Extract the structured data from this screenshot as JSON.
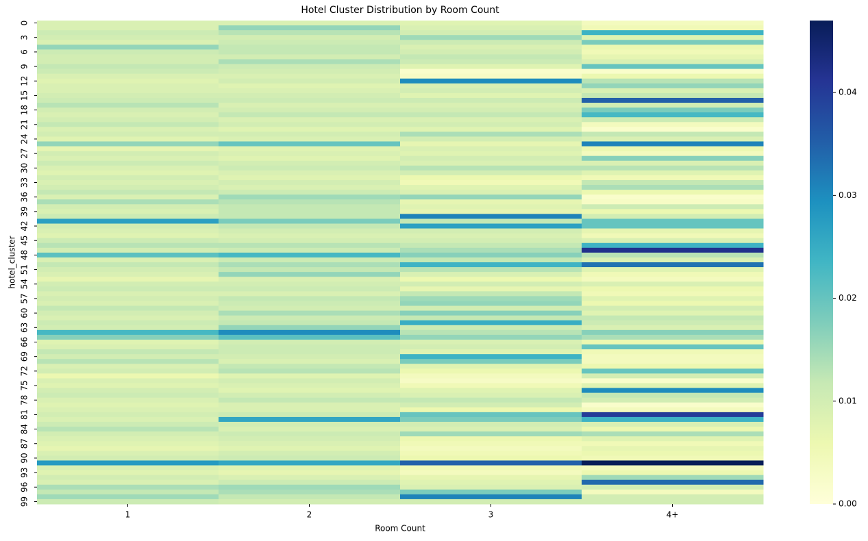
{
  "chart_data": {
    "type": "heatmap",
    "title": "Hotel Cluster Distribution by Room Count",
    "x_label": "Room Count",
    "y_label": "hotel_cluster",
    "x_categories": [
      "1",
      "2",
      "3",
      "4+"
    ],
    "y_categories": [
      0,
      null,
      null,
      3,
      null,
      null,
      6,
      null,
      null,
      9,
      null,
      null,
      12,
      null,
      null,
      15,
      null,
      null,
      18,
      null,
      null,
      21,
      null,
      null,
      24,
      null,
      null,
      27,
      null,
      null,
      30,
      null,
      null,
      33,
      null,
      null,
      36,
      null,
      null,
      39,
      null,
      null,
      42,
      null,
      null,
      45,
      null,
      null,
      48,
      null,
      null,
      51,
      null,
      null,
      54,
      null,
      null,
      57,
      null,
      null,
      60,
      null,
      null,
      63,
      null,
      null,
      66,
      null,
      null,
      69,
      null,
      null,
      72,
      null,
      null,
      75,
      null,
      null,
      78,
      null,
      null,
      81,
      null,
      null,
      84,
      null,
      null,
      87,
      null,
      null,
      90,
      null,
      null,
      93,
      null,
      null,
      96,
      null,
      null,
      99
    ],
    "colormap": "YlGnBu",
    "zlim": [
      0,
      0.047
    ],
    "zticks": [
      {
        "value": 0,
        "label": "0.00"
      },
      0.01,
      0.02,
      0.03,
      0.04
    ],
    "values": [
      [
        0.009,
        0.009,
        0.011,
        0.01,
        0.009,
        0.016,
        0.011,
        0.01,
        0.01,
        0.012,
        0.011,
        0.009,
        0.008,
        0.009,
        0.009,
        0.01,
        0.011,
        0.013,
        0.01,
        0.009,
        0.01,
        0.012,
        0.009,
        0.01,
        0.008,
        0.016,
        0.007,
        0.01,
        0.009,
        0.011,
        0.009,
        0.008,
        0.01,
        0.009,
        0.01,
        0.012,
        0.009,
        0.014,
        0.01,
        0.009,
        0.011,
        0.027,
        0.01,
        0.009,
        0.008,
        0.011,
        0.013,
        0.01,
        0.021,
        0.009,
        0.012,
        0.01,
        0.009,
        0.007,
        0.01,
        0.011,
        0.009,
        0.01,
        0.009,
        0.012,
        0.01,
        0.009,
        0.011,
        0.01,
        0.023,
        0.017,
        0.008,
        0.009,
        0.012,
        0.01,
        0.013,
        0.009,
        0.01,
        0.006,
        0.009,
        0.008,
        0.01,
        0.011,
        0.009,
        0.008,
        0.009,
        0.01,
        0.009,
        0.011,
        0.013,
        0.01,
        0.009,
        0.008,
        0.007,
        0.009,
        0.01,
        0.028,
        0.009,
        0.008,
        0.01,
        0.009,
        0.014,
        0.012,
        0.015,
        0.011
      ],
      [
        0.009,
        0.016,
        0.013,
        0.01,
        0.011,
        0.012,
        0.012,
        0.01,
        0.014,
        0.011,
        0.01,
        0.009,
        0.01,
        0.008,
        0.009,
        0.01,
        0.011,
        0.009,
        0.01,
        0.012,
        0.009,
        0.01,
        0.008,
        0.01,
        0.009,
        0.02,
        0.008,
        0.009,
        0.008,
        0.01,
        0.011,
        0.009,
        0.008,
        0.01,
        0.009,
        0.011,
        0.015,
        0.013,
        0.012,
        0.012,
        0.012,
        0.018,
        0.012,
        0.01,
        0.009,
        0.01,
        0.013,
        0.011,
        0.023,
        0.011,
        0.014,
        0.012,
        0.016,
        0.009,
        0.01,
        0.011,
        0.009,
        0.012,
        0.011,
        0.01,
        0.014,
        0.011,
        0.012,
        0.016,
        0.03,
        0.021,
        0.01,
        0.011,
        0.011,
        0.01,
        0.009,
        0.012,
        0.013,
        0.008,
        0.01,
        0.009,
        0.008,
        0.01,
        0.012,
        0.009,
        0.009,
        0.011,
        0.026,
        0.01,
        0.009,
        0.011,
        0.01,
        0.009,
        0.008,
        0.01,
        0.011,
        0.026,
        0.008,
        0.007,
        0.009,
        0.011,
        0.015,
        0.014,
        0.012,
        0.01
      ],
      [
        0.008,
        0.009,
        0.01,
        0.015,
        0.011,
        0.009,
        0.01,
        0.012,
        0.011,
        0.008,
        0.002,
        0.003,
        0.03,
        0.009,
        0.01,
        0.008,
        0.011,
        0.009,
        0.01,
        0.012,
        0.009,
        0.01,
        0.008,
        0.014,
        0.01,
        0.007,
        0.009,
        0.008,
        0.01,
        0.009,
        0.013,
        0.01,
        0.006,
        0.005,
        0.008,
        0.009,
        0.016,
        0.007,
        0.008,
        0.007,
        0.031,
        0.012,
        0.027,
        0.01,
        0.009,
        0.01,
        0.012,
        0.014,
        0.017,
        0.012,
        0.024,
        0.013,
        0.009,
        0.006,
        0.01,
        0.007,
        0.012,
        0.015,
        0.016,
        0.01,
        0.017,
        0.012,
        0.025,
        0.011,
        0.013,
        0.016,
        0.009,
        0.01,
        0.008,
        0.024,
        0.018,
        0.008,
        0.006,
        0.004,
        0.003,
        0.005,
        0.008,
        0.009,
        0.012,
        0.01,
        0.006,
        0.02,
        0.018,
        0.01,
        0.009,
        0.015,
        0.006,
        0.005,
        0.004,
        0.005,
        0.006,
        0.035,
        0.005,
        0.004,
        0.007,
        0.008,
        0.009,
        0.018,
        0.031,
        0.01
      ],
      [
        0.004,
        0.005,
        0.024,
        0.008,
        0.018,
        0.006,
        0.005,
        0.007,
        0.009,
        0.02,
        0.002,
        0.006,
        0.013,
        0.016,
        0.009,
        0.012,
        0.035,
        0.01,
        0.018,
        0.023,
        0.011,
        0.004,
        0.002,
        0.012,
        0.009,
        0.031,
        0.006,
        0.004,
        0.017,
        0.009,
        0.013,
        0.008,
        0.005,
        0.012,
        0.014,
        0.006,
        0.002,
        0.003,
        0.011,
        0.006,
        0.01,
        0.02,
        0.02,
        0.007,
        0.005,
        0.009,
        0.024,
        0.042,
        0.013,
        0.009,
        0.033,
        0.008,
        0.005,
        0.004,
        0.009,
        0.006,
        0.005,
        0.008,
        0.006,
        0.01,
        0.008,
        0.012,
        0.011,
        0.009,
        0.017,
        0.014,
        0.006,
        0.02,
        0.005,
        0.004,
        0.004,
        0.006,
        0.02,
        0.01,
        0.002,
        0.008,
        0.03,
        0.012,
        0.01,
        0.002,
        0.004,
        0.04,
        0.024,
        0.009,
        0.006,
        0.014,
        0.008,
        0.005,
        0.007,
        0.006,
        0.005,
        0.047,
        0.004,
        0.006,
        0.015,
        0.034,
        0.01,
        0.004,
        0.01,
        0.01
      ]
    ]
  }
}
